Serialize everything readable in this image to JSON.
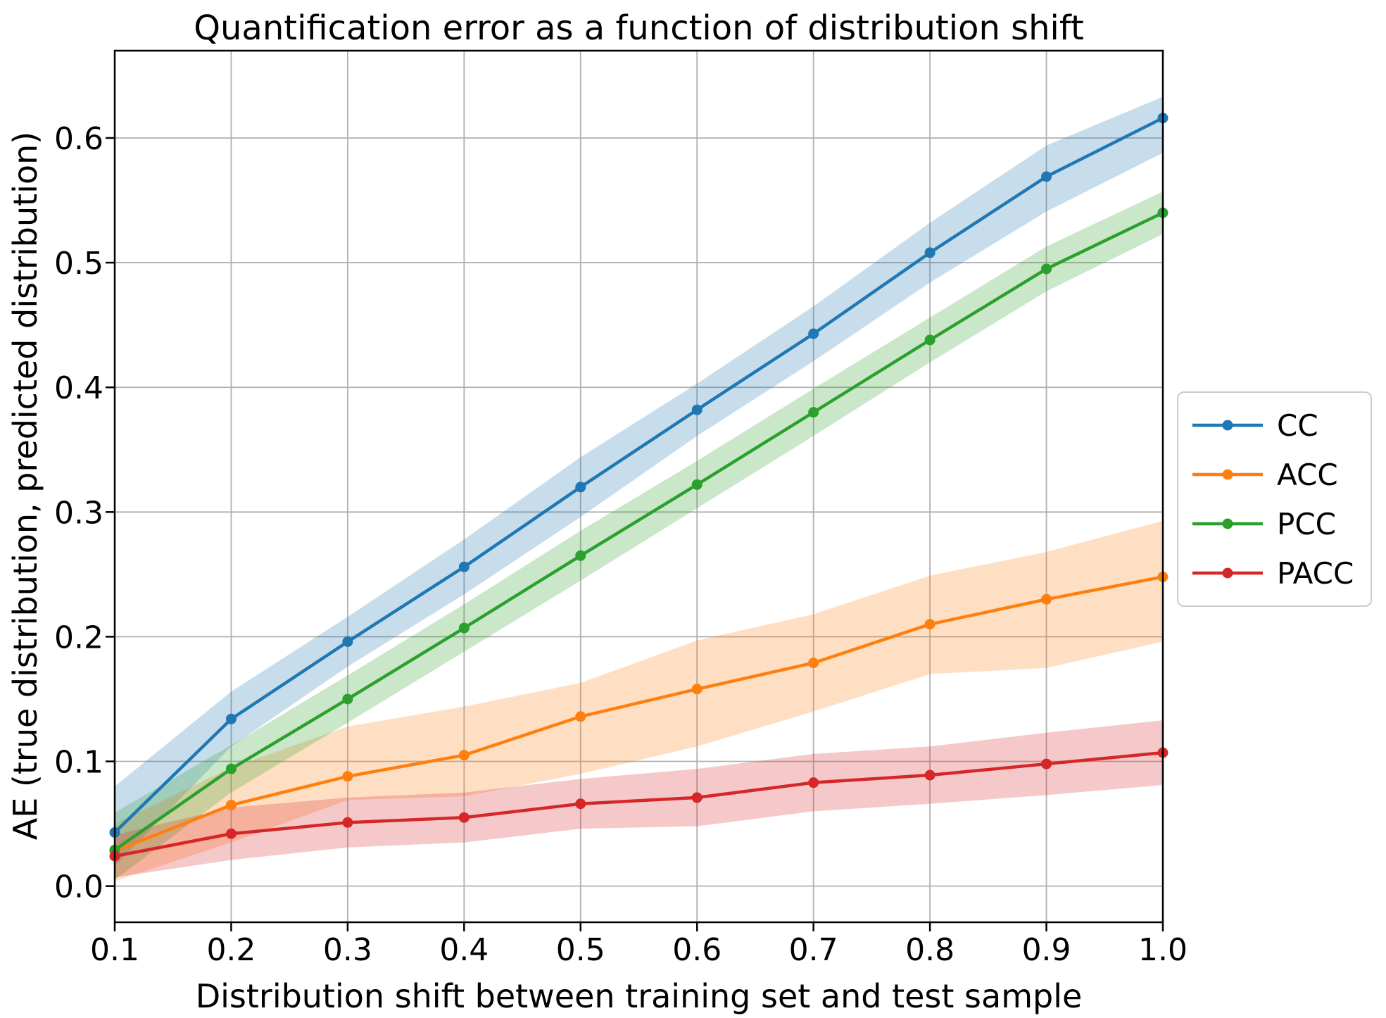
{
  "chart_data": {
    "type": "line",
    "title": "Quantification error as a function of distribution shift",
    "xlabel": "Distribution shift between training set and test sample",
    "ylabel": "AE (true distribution, predicted distribution)",
    "x": [
      0.1,
      0.2,
      0.3,
      0.4,
      0.5,
      0.6,
      0.7,
      0.8,
      0.9,
      1.0
    ],
    "xlim": [
      0.1,
      1.0
    ],
    "ylim": [
      -0.029,
      0.67
    ],
    "grid": true,
    "legend_position": "center right (outside axes)",
    "xtick_labels": [
      "0.1",
      "0.2",
      "0.3",
      "0.4",
      "0.5",
      "0.6",
      "0.7",
      "0.8",
      "0.9",
      "1.0"
    ],
    "xtick_values": [
      0.1,
      0.2,
      0.3,
      0.4,
      0.5,
      0.6,
      0.7,
      0.8,
      0.9,
      1.0
    ],
    "ytick_labels": [
      "0.0",
      "0.1",
      "0.2",
      "0.3",
      "0.4",
      "0.5",
      "0.6"
    ],
    "ytick_values": [
      0.0,
      0.1,
      0.2,
      0.3,
      0.4,
      0.5,
      0.6
    ],
    "grid_color": "#b0b0b0",
    "spine_color": "#000000",
    "background_color": "#ffffff",
    "band_opacity": 0.25,
    "series": [
      {
        "name": "CC",
        "color": "#1f77b4",
        "values": [
          0.043,
          0.134,
          0.196,
          0.256,
          0.32,
          0.382,
          0.443,
          0.508,
          0.569,
          0.616
        ],
        "band_upper": [
          0.08,
          0.156,
          0.216,
          0.278,
          0.344,
          0.403,
          0.465,
          0.532,
          0.594,
          0.633
        ],
        "band_lower": [
          0.016,
          0.112,
          0.176,
          0.234,
          0.296,
          0.361,
          0.421,
          0.484,
          0.541,
          0.588
        ]
      },
      {
        "name": "ACC",
        "color": "#ff7f0e",
        "values": [
          0.028,
          0.065,
          0.088,
          0.105,
          0.136,
          0.158,
          0.179,
          0.21,
          0.23,
          0.248
        ],
        "band_upper": [
          0.05,
          0.095,
          0.128,
          0.144,
          0.163,
          0.197,
          0.218,
          0.249,
          0.268,
          0.293
        ],
        "band_lower": [
          0.004,
          0.035,
          0.069,
          0.072,
          0.09,
          0.112,
          0.14,
          0.17,
          0.175,
          0.196
        ]
      },
      {
        "name": "PCC",
        "color": "#2ca02c",
        "values": [
          0.029,
          0.094,
          0.15,
          0.207,
          0.265,
          0.322,
          0.38,
          0.438,
          0.495,
          0.54
        ],
        "band_upper": [
          0.059,
          0.113,
          0.169,
          0.226,
          0.285,
          0.341,
          0.399,
          0.456,
          0.513,
          0.557
        ],
        "band_lower": [
          0.005,
          0.075,
          0.131,
          0.188,
          0.245,
          0.303,
          0.361,
          0.42,
          0.477,
          0.523
        ]
      },
      {
        "name": "PACC",
        "color": "#d62728",
        "values": [
          0.024,
          0.042,
          0.051,
          0.055,
          0.066,
          0.071,
          0.083,
          0.089,
          0.098,
          0.107
        ],
        "band_upper": [
          0.041,
          0.063,
          0.071,
          0.075,
          0.086,
          0.094,
          0.106,
          0.112,
          0.123,
          0.133
        ],
        "band_lower": [
          0.007,
          0.021,
          0.031,
          0.035,
          0.046,
          0.048,
          0.06,
          0.066,
          0.073,
          0.081
        ]
      }
    ]
  }
}
